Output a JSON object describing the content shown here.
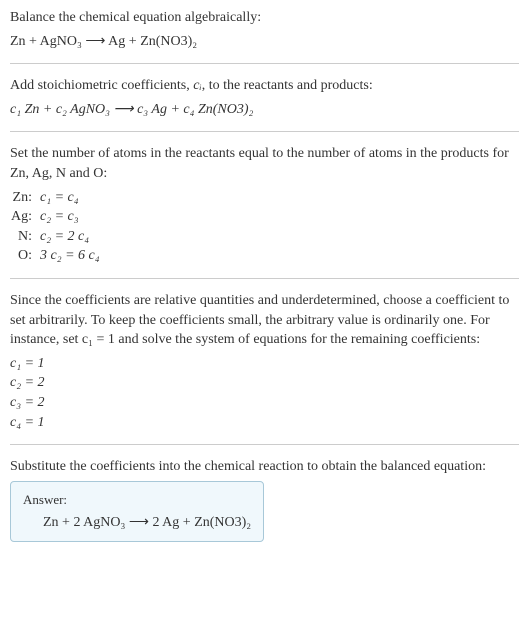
{
  "intro": {
    "line1": "Balance the chemical equation algebraically:",
    "equation": "Zn + AgNO₃  ⟶  Ag + Zn(NO3)₂"
  },
  "step1": {
    "text_before": "Add stoichiometric coefficients, ",
    "ci": "cᵢ",
    "text_after": ", to the reactants and products:",
    "equation": "c₁ Zn + c₂ AgNO₃  ⟶  c₃ Ag + c₄ Zn(NO3)₂"
  },
  "step2": {
    "text": "Set the number of atoms in the reactants equal to the number of atoms in the products for Zn, Ag, N and O:",
    "rows": [
      {
        "label": "Zn:",
        "eq": "c₁ = c₄"
      },
      {
        "label": "Ag:",
        "eq": "c₂ = c₃"
      },
      {
        "label": "N:",
        "eq": "c₂ = 2 c₄"
      },
      {
        "label": "O:",
        "eq": "3 c₂ = 6 c₄"
      }
    ]
  },
  "step3": {
    "text": "Since the coefficients are relative quantities and underdetermined, choose a coefficient to set arbitrarily. To keep the coefficients small, the arbitrary value is ordinarily one. For instance, set c₁ = 1 and solve the system of equations for the remaining coefficients:",
    "coeffs": [
      "c₁ = 1",
      "c₂ = 2",
      "c₃ = 2",
      "c₄ = 1"
    ]
  },
  "step4": {
    "text": "Substitute the coefficients into the chemical reaction to obtain the balanced equation:"
  },
  "answer": {
    "label": "Answer:",
    "equation": "Zn + 2 AgNO₃  ⟶  2 Ag + Zn(NO3)₂"
  }
}
